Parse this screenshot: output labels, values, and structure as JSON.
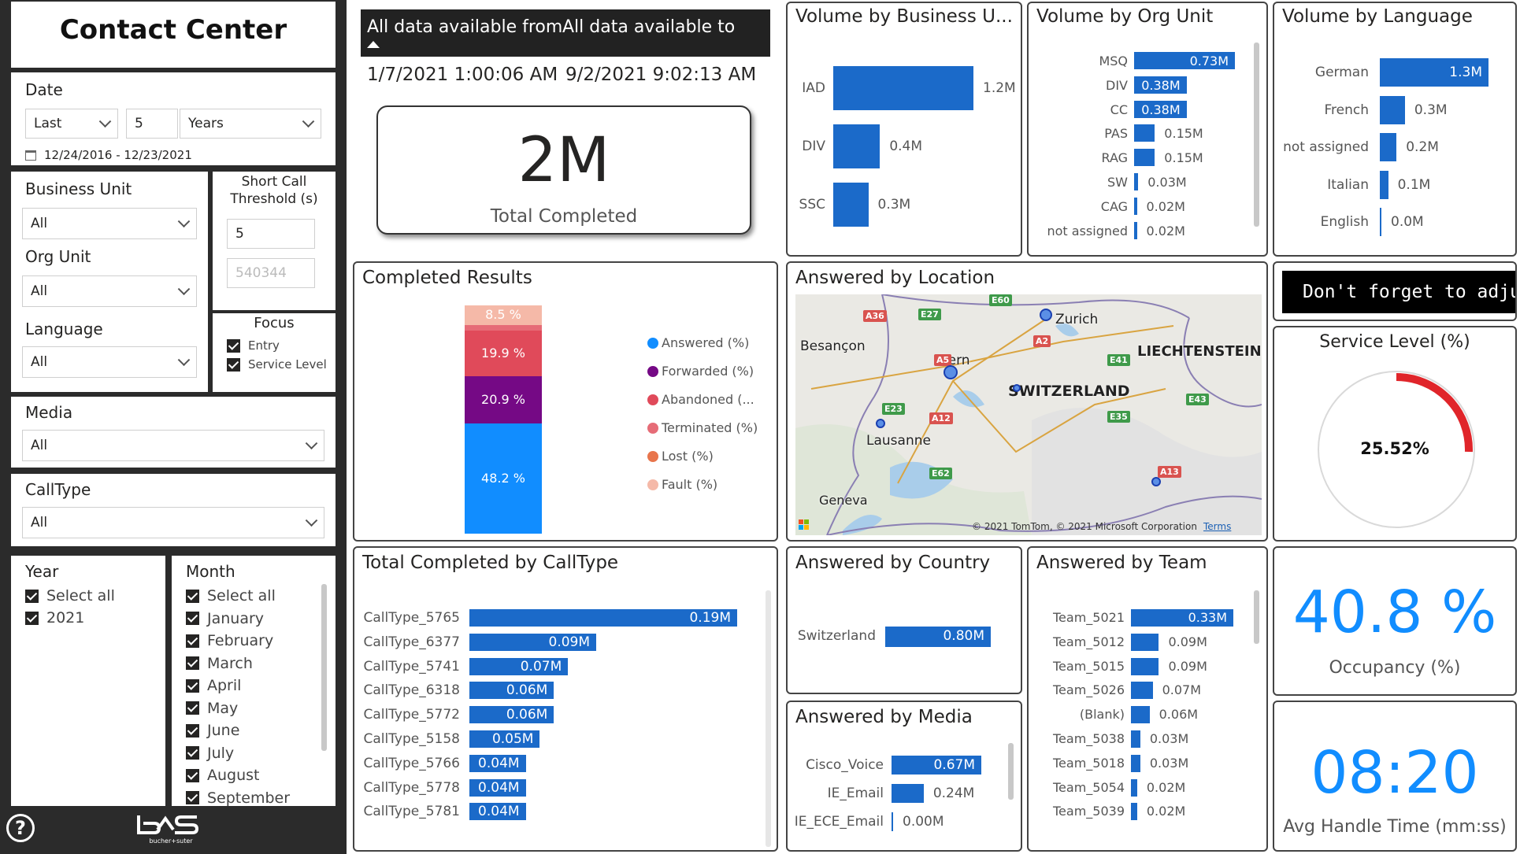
{
  "sidebar": {
    "title": "Contact Center",
    "date": {
      "label": "Date",
      "mode": "Last",
      "count": "5",
      "unit": "Years",
      "range": "12/24/2016 - 12/23/2021"
    },
    "business_unit": {
      "label": "Business Unit",
      "value": "All"
    },
    "org_unit": {
      "label": "Org Unit",
      "value": "All"
    },
    "language": {
      "label": "Language",
      "value": "All"
    },
    "short_call": {
      "label": "Short Call Threshold (s)",
      "value": "5",
      "placeholder": "540344"
    },
    "focus": {
      "label": "Focus",
      "items": [
        "Entry",
        "Service Level"
      ]
    },
    "media": {
      "label": "Media",
      "value": "All"
    },
    "calltype": {
      "label": "CallType",
      "value": "All"
    },
    "year": {
      "label": "Year",
      "items": [
        "Select all",
        "2021"
      ]
    },
    "month": {
      "label": "Month",
      "items": [
        "Select all",
        "January",
        "February",
        "March",
        "April",
        "May",
        "June",
        "July",
        "August",
        "September"
      ]
    },
    "brand": "bucher+suter"
  },
  "data_range": {
    "from_label": "All data available from",
    "to_label": "All data available to",
    "from": "1/7/2021 1:00:06 AM",
    "to": "9/2/2021 9:02:13 AM"
  },
  "kpi_total": {
    "value": "2M",
    "label": "Total Completed"
  },
  "volume_bu": {
    "title": "Volume by Business U...",
    "items": [
      {
        "name": "IAD",
        "label": "1.2M",
        "value": 1.2
      },
      {
        "name": "DIV",
        "label": "0.4M",
        "value": 0.4
      },
      {
        "name": "SSC",
        "label": "0.3M",
        "value": 0.3
      }
    ]
  },
  "volume_org": {
    "title": "Volume by Org Unit",
    "items": [
      {
        "name": "MSQ",
        "label": "0.73M",
        "value": 0.73
      },
      {
        "name": "DIV",
        "label": "0.38M",
        "value": 0.38
      },
      {
        "name": "CC",
        "label": "0.38M",
        "value": 0.38
      },
      {
        "name": "PAS",
        "label": "0.15M",
        "value": 0.15
      },
      {
        "name": "RAG",
        "label": "0.15M",
        "value": 0.15
      },
      {
        "name": "SW",
        "label": "0.03M",
        "value": 0.03
      },
      {
        "name": "CAG",
        "label": "0.02M",
        "value": 0.02
      },
      {
        "name": "not assigned",
        "label": "0.02M",
        "value": 0.02
      }
    ]
  },
  "volume_lang": {
    "title": "Volume by Language",
    "items": [
      {
        "name": "German",
        "label": "1.3M",
        "value": 1.3
      },
      {
        "name": "French",
        "label": "0.3M",
        "value": 0.3
      },
      {
        "name": "not assigned",
        "label": "0.2M",
        "value": 0.2
      },
      {
        "name": "Italian",
        "label": "0.1M",
        "value": 0.1
      },
      {
        "name": "English",
        "label": "0.0M",
        "value": 0.0
      }
    ]
  },
  "completed_results": {
    "title": "Completed Results",
    "segments": [
      {
        "name": "Answered (%)",
        "label": "48.2 %",
        "value": 48.2,
        "color": "#118dff"
      },
      {
        "name": "Forwarded (%)",
        "label": "20.9 %",
        "value": 20.9,
        "color": "#750985"
      },
      {
        "name": "Abandoned (...",
        "label": "19.9 %",
        "value": 19.9,
        "color": "#e04a5a"
      },
      {
        "name": "Terminated (%)",
        "label": "",
        "value": 2.5,
        "color": "#e66c77"
      },
      {
        "name": "Lost (%)",
        "label": "",
        "value": 0,
        "color": "#e8754c"
      },
      {
        "name": "Fault (%)",
        "label": "8.5 %",
        "value": 8.5,
        "color": "#f5b9a8"
      }
    ]
  },
  "map": {
    "title": "Answered by Location",
    "places": [
      "Besançon",
      "Bern",
      "Zurich",
      "LIECHTENSTEIN",
      "SWITZERLAND",
      "Lausanne",
      "Geneva"
    ],
    "roads": [
      "A36",
      "E27",
      "E60",
      "A5",
      "A2",
      "E41",
      "E23",
      "A12",
      "E35",
      "E43",
      "E62",
      "A13"
    ],
    "attribution": "© 2021 TomTom, © 2021 Microsoft Corporation",
    "terms": "Terms"
  },
  "notice": "Don't forget to adjust the Short Call Threshold",
  "service_level": {
    "title": "Service Level (%)",
    "label": "25.52%",
    "value": 25.52
  },
  "calltype_chart": {
    "title": "Total Completed by CallType",
    "items": [
      {
        "name": "CallType_5765",
        "label": "0.19M",
        "value": 0.19
      },
      {
        "name": "CallType_6377",
        "label": "0.09M",
        "value": 0.09
      },
      {
        "name": "CallType_5741",
        "label": "0.07M",
        "value": 0.07
      },
      {
        "name": "CallType_6318",
        "label": "0.06M",
        "value": 0.06
      },
      {
        "name": "CallType_5772",
        "label": "0.06M",
        "value": 0.06
      },
      {
        "name": "CallType_5158",
        "label": "0.05M",
        "value": 0.05
      },
      {
        "name": "CallType_5766",
        "label": "0.04M",
        "value": 0.04
      },
      {
        "name": "CallType_5778",
        "label": "0.04M",
        "value": 0.04
      },
      {
        "name": "CallType_5781",
        "label": "0.04M",
        "value": 0.04
      }
    ]
  },
  "country": {
    "title": "Answered by Country",
    "items": [
      {
        "name": "Switzerland",
        "label": "0.80M",
        "value": 0.8
      }
    ]
  },
  "media_chart": {
    "title": "Answered by Media",
    "items": [
      {
        "name": "Cisco_Voice",
        "label": "0.67M",
        "value": 0.67
      },
      {
        "name": "IE_Email",
        "label": "0.24M",
        "value": 0.24
      },
      {
        "name": "IE_ECE_Email",
        "label": "0.00M",
        "value": 0.0
      }
    ]
  },
  "team": {
    "title": "Answered by Team",
    "items": [
      {
        "name": "Team_5021",
        "label": "0.33M",
        "value": 0.33
      },
      {
        "name": "Team_5012",
        "label": "0.09M",
        "value": 0.09
      },
      {
        "name": "Team_5015",
        "label": "0.09M",
        "value": 0.09
      },
      {
        "name": "Team_5026",
        "label": "0.07M",
        "value": 0.07
      },
      {
        "name": "(Blank)",
        "label": "0.06M",
        "value": 0.06
      },
      {
        "name": "Team_5038",
        "label": "0.03M",
        "value": 0.03
      },
      {
        "name": "Team_5018",
        "label": "0.03M",
        "value": 0.03
      },
      {
        "name": "Team_5054",
        "label": "0.02M",
        "value": 0.02
      },
      {
        "name": "Team_5039",
        "label": "0.02M",
        "value": 0.02
      }
    ]
  },
  "occupancy": {
    "value": "40.8 %",
    "label": "Occupancy (%)"
  },
  "aht": {
    "value": "08:20",
    "label": "Avg Handle Time (mm:ss)"
  },
  "colors": {
    "bar": "#1b6ac9",
    "kpi_blue": "#118dff",
    "gauge": "#e0252a"
  }
}
